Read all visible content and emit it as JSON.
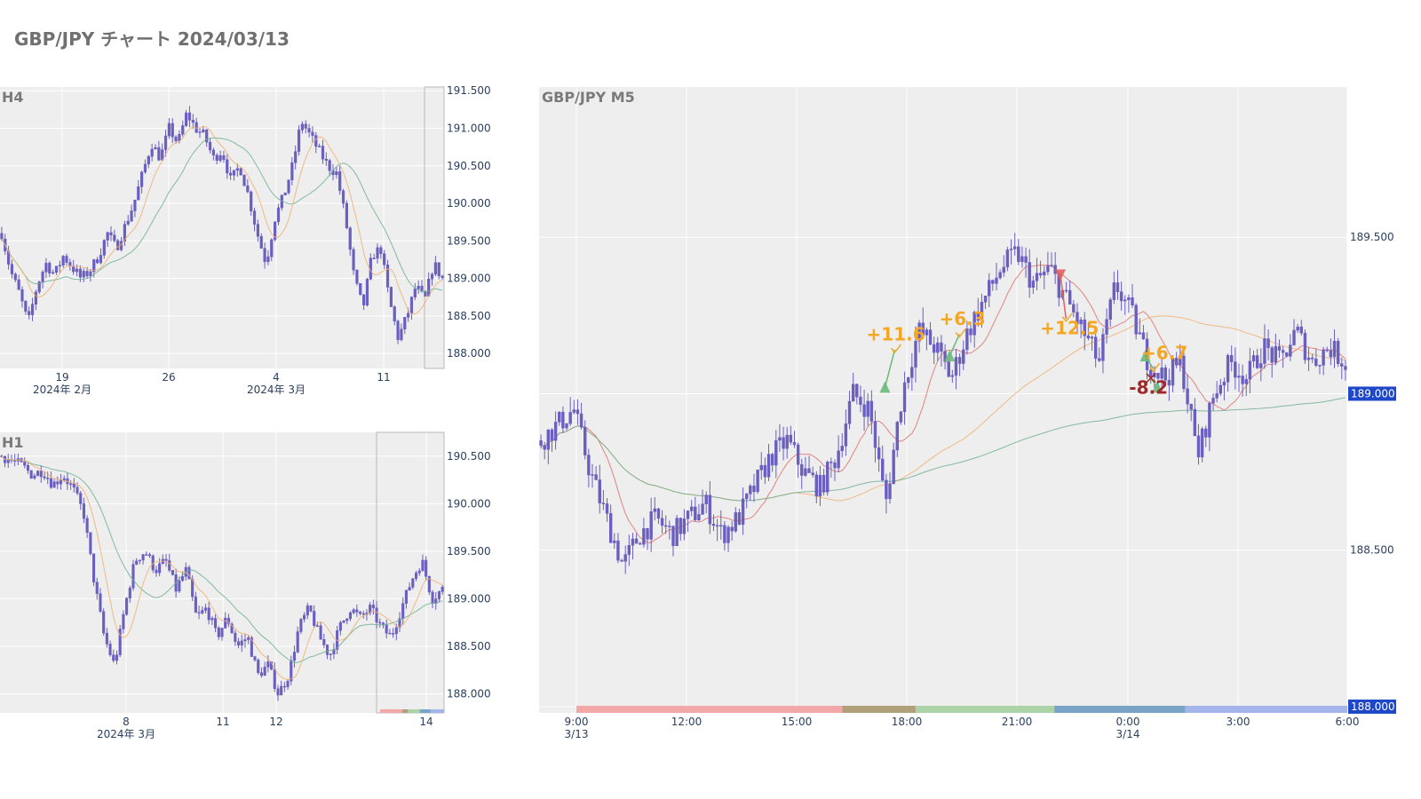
{
  "page": {
    "title": "GBP/JPY チャート 2024/03/13"
  },
  "colors": {
    "candle": "#6a5fbf",
    "panel_bg": "#eeeeee",
    "grid": "#ffffff",
    "ma_short": "#e07070",
    "ma_mid": "#f0b070",
    "ma_long": "#70b090",
    "win_label": "#f5a623",
    "loss_label": "#a02828",
    "badge_bg": "#1f48c8"
  },
  "chart_data": [
    {
      "id": "h4",
      "type": "candlestick",
      "title": "H4",
      "ylim": [
        187.8,
        191.55
      ],
      "yticks": [
        "191.500",
        "191.000",
        "190.500",
        "190.000",
        "189.500",
        "189.000",
        "188.500",
        "188.000"
      ],
      "ytick_values": [
        191.5,
        191.0,
        190.5,
        190.0,
        189.5,
        189.0,
        188.5,
        188.0
      ],
      "xticks": [
        {
          "label": "19",
          "sub": "2024年 2月"
        },
        {
          "label": "26",
          "sub": ""
        },
        {
          "label": "4",
          "sub": "2024年 3月"
        },
        {
          "label": "11",
          "sub": ""
        }
      ],
      "close_path": [
        189.6,
        189.1,
        188.8,
        188.4,
        188.9,
        189.2,
        189.05,
        189.3,
        189.15,
        189.0,
        189.1,
        189.3,
        189.6,
        189.4,
        189.7,
        190.0,
        190.4,
        190.8,
        190.6,
        191.0,
        190.8,
        191.2,
        191.0,
        190.9,
        190.6,
        190.7,
        190.3,
        190.5,
        190.1,
        189.6,
        189.2,
        189.8,
        190.1,
        190.5,
        191.1,
        190.9,
        190.7,
        190.5,
        190.4,
        189.8,
        189.0,
        188.6,
        189.3,
        189.4,
        188.7,
        188.2,
        188.5,
        188.9,
        188.7,
        189.2,
        189.0
      ]
    },
    {
      "id": "h1",
      "type": "candlestick",
      "title": "H1",
      "ylim": [
        187.8,
        190.75
      ],
      "yticks": [
        "190.500",
        "190.000",
        "189.500",
        "189.000",
        "188.500",
        "188.000"
      ],
      "ytick_values": [
        190.5,
        190.0,
        189.5,
        189.0,
        188.5,
        188.0
      ],
      "xticks": [
        {
          "label": "8",
          "sub": "2024年 3月"
        },
        {
          "label": "11",
          "sub": ""
        },
        {
          "label": "12",
          "sub": ""
        },
        {
          "label": "14",
          "sub": ""
        }
      ],
      "close_path": [
        190.5,
        190.45,
        190.4,
        190.3,
        190.35,
        190.2,
        190.3,
        190.15,
        189.9,
        189.2,
        188.6,
        188.3,
        188.9,
        189.4,
        189.5,
        189.3,
        189.4,
        189.1,
        189.3,
        188.8,
        188.9,
        188.6,
        188.8,
        188.5,
        188.6,
        188.2,
        188.3,
        188.0,
        188.2,
        188.7,
        188.9,
        188.6,
        188.4,
        188.7,
        188.9,
        188.8,
        188.9,
        188.7,
        188.6,
        188.9,
        189.2,
        189.4,
        189.0,
        189.1
      ]
    },
    {
      "id": "m5",
      "type": "candlestick",
      "title": "GBP/JPY M5",
      "ylim": [
        187.98,
        189.98
      ],
      "yticks": [
        "189.500",
        "189.000",
        "188.500",
        "188.000"
      ],
      "ytick_values": [
        189.5,
        189.0,
        188.5,
        188.0
      ],
      "badge_ticks": [
        "189.000",
        "188.000"
      ],
      "xticks": [
        {
          "label": "9:00",
          "sub": "3/13"
        },
        {
          "label": "12:00",
          "sub": ""
        },
        {
          "label": "15:00",
          "sub": ""
        },
        {
          "label": "18:00",
          "sub": ""
        },
        {
          "label": "21:00",
          "sub": ""
        },
        {
          "label": "0:00",
          "sub": "3/14"
        },
        {
          "label": "3:00",
          "sub": ""
        },
        {
          "label": "6:00",
          "sub": ""
        }
      ],
      "close_path": [
        188.85,
        188.9,
        188.95,
        188.75,
        188.6,
        188.45,
        188.55,
        188.6,
        188.55,
        188.6,
        188.65,
        188.55,
        188.6,
        188.7,
        188.8,
        188.85,
        188.75,
        188.7,
        188.8,
        189.0,
        188.95,
        188.65,
        189.0,
        189.2,
        189.15,
        189.05,
        189.2,
        189.3,
        189.4,
        189.45,
        189.35,
        189.4,
        189.3,
        189.2,
        189.1,
        189.35,
        189.25,
        189.1,
        189.05,
        189.1,
        188.8,
        189.0,
        189.1,
        189.05,
        189.15,
        189.1,
        189.2,
        189.1,
        189.15,
        189.1
      ],
      "session_colors": [
        "#f4a7a7",
        "#b0a17a",
        "#acd4a8",
        "#7aa3c8",
        "#a3b5ea"
      ],
      "session_bounds": [
        0.0,
        0.345,
        0.44,
        0.62,
        0.79,
        1.0
      ],
      "trades": [
        {
          "label": "+11.6",
          "result": "win"
        },
        {
          "label": "+6.3",
          "result": "win"
        },
        {
          "label": "+12.5",
          "result": "win"
        },
        {
          "label": "+6.7",
          "result": "win"
        },
        {
          "label": "-8.2",
          "result": "loss"
        }
      ]
    }
  ]
}
